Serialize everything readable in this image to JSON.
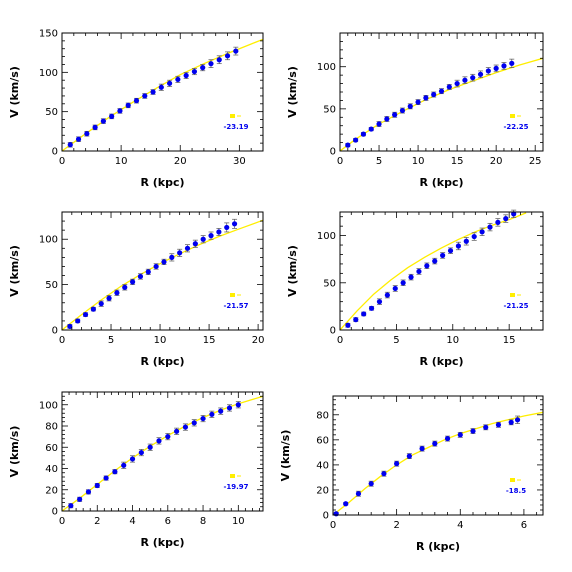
{
  "chart_data": [
    {
      "type": "scatter",
      "xlabel": "R (kpc)",
      "ylabel": "V (km/s)",
      "xlim": [
        0,
        34
      ],
      "ylim": [
        0,
        150
      ],
      "xticks": [
        0,
        10,
        20,
        30
      ],
      "yticks": [
        0,
        50,
        100,
        150
      ],
      "legend_value": "-23.19",
      "legend_position": "lower-right",
      "series": [
        {
          "kind": "points",
          "x": [
            1.4,
            2.8,
            4.2,
            5.6,
            7.0,
            8.4,
            9.8,
            11.2,
            12.6,
            14.0,
            15.4,
            16.8,
            18.2,
            19.6,
            21.0,
            22.4,
            23.8,
            25.2,
            26.6,
            28.0,
            29.4
          ],
          "y": [
            8,
            15,
            22,
            30,
            38,
            44,
            51,
            58,
            64,
            70,
            75,
            81,
            86,
            91,
            96,
            101,
            106,
            111,
            116,
            121,
            127
          ],
          "err": [
            3,
            3,
            3,
            3,
            3,
            3,
            3,
            3,
            3,
            3,
            3,
            4,
            4,
            4,
            4,
            4,
            4,
            5,
            5,
            5,
            5
          ]
        },
        {
          "kind": "fit",
          "x": [
            0,
            4,
            8,
            12,
            16,
            20,
            24,
            28,
            32,
            34
          ],
          "y": [
            0,
            22,
            43,
            62,
            80,
            97,
            111,
            124,
            136,
            142
          ]
        }
      ]
    },
    {
      "type": "scatter",
      "xlabel": "R (kpc)",
      "ylabel": "V (km/s)",
      "xlim": [
        0,
        26
      ],
      "ylim": [
        0,
        140
      ],
      "xticks": [
        0,
        5,
        10,
        15,
        20,
        25
      ],
      "yticks": [
        0,
        50,
        100
      ],
      "legend_value": "-22.25",
      "legend_position": "lower-right",
      "series": [
        {
          "kind": "points",
          "x": [
            1.0,
            2.0,
            3.0,
            4.0,
            5.0,
            6.0,
            7.0,
            8.0,
            9.0,
            10.0,
            11.0,
            12.0,
            13.0,
            14.0,
            15.0,
            16.0,
            17.0,
            18.0,
            19.0,
            20.0,
            21.0,
            22.0
          ],
          "y": [
            7,
            13,
            20,
            26,
            32,
            38,
            43,
            48,
            53,
            58,
            63,
            67,
            71,
            76,
            80,
            84,
            87,
            91,
            95,
            98,
            101,
            104
          ],
          "err": [
            2,
            2,
            2,
            2,
            3,
            3,
            3,
            3,
            3,
            3,
            3,
            3,
            3,
            3,
            4,
            4,
            4,
            4,
            4,
            4,
            4,
            5
          ]
        },
        {
          "kind": "fit",
          "x": [
            0,
            2,
            5,
            8,
            11,
            14,
            17,
            20,
            23,
            26
          ],
          "y": [
            0,
            14,
            32,
            47,
            61,
            73,
            83,
            93,
            102,
            110
          ]
        }
      ]
    },
    {
      "type": "scatter",
      "xlabel": "R (kpc)",
      "ylabel": "V (km/s)",
      "xlim": [
        0,
        20.5
      ],
      "ylim": [
        0,
        130
      ],
      "xticks": [
        0,
        5,
        10,
        15,
        20
      ],
      "yticks": [
        0,
        50,
        100
      ],
      "legend_value": "-21.57",
      "legend_position": "lower-right",
      "series": [
        {
          "kind": "points",
          "x": [
            0.8,
            1.6,
            2.4,
            3.2,
            4.0,
            4.8,
            5.6,
            6.4,
            7.2,
            8.0,
            8.8,
            9.6,
            10.4,
            11.2,
            12.0,
            12.8,
            13.6,
            14.4,
            15.2,
            16.0,
            16.8,
            17.6
          ],
          "y": [
            4,
            10,
            17,
            23,
            29,
            35,
            41,
            47,
            53,
            59,
            64,
            70,
            75,
            80,
            85,
            90,
            95,
            100,
            104,
            108,
            113,
            117
          ],
          "err": [
            2,
            2,
            2,
            2,
            3,
            3,
            3,
            3,
            3,
            3,
            3,
            3,
            3,
            4,
            4,
            4,
            4,
            4,
            4,
            4,
            5,
            5
          ]
        },
        {
          "kind": "fit",
          "x": [
            0,
            2,
            4,
            6,
            8,
            10,
            12,
            14,
            16,
            18,
            20.5
          ],
          "y": [
            0,
            17,
            33,
            48,
            61,
            73,
            84,
            94,
            103,
            111,
            121
          ]
        }
      ]
    },
    {
      "type": "scatter",
      "xlabel": "R (kpc)",
      "ylabel": "V (km/s)",
      "xlim": [
        0,
        18
      ],
      "ylim": [
        0,
        125
      ],
      "xticks": [
        0,
        5,
        10,
        15
      ],
      "yticks": [
        0,
        50,
        100
      ],
      "legend_value": "-21.25",
      "legend_position": "lower-right",
      "series": [
        {
          "kind": "points",
          "x": [
            0.7,
            1.4,
            2.1,
            2.8,
            3.5,
            4.2,
            4.9,
            5.6,
            6.3,
            7.0,
            7.7,
            8.4,
            9.1,
            9.8,
            10.5,
            11.2,
            11.9,
            12.6,
            13.3,
            14.0,
            14.7,
            15.4
          ],
          "y": [
            5,
            11,
            17,
            23,
            30,
            37,
            44,
            50,
            56,
            62,
            68,
            73,
            79,
            84,
            89,
            94,
            99,
            104,
            109,
            114,
            118,
            123
          ],
          "err": [
            2,
            2,
            2,
            2,
            3,
            3,
            3,
            3,
            3,
            3,
            3,
            3,
            3,
            3,
            4,
            4,
            4,
            4,
            4,
            4,
            4,
            4
          ]
        },
        {
          "kind": "fit",
          "x": [
            0,
            1.5,
            3,
            4.5,
            6,
            7.5,
            9,
            10.5,
            12,
            13.5,
            15,
            16.5
          ],
          "y": [
            0,
            20,
            38,
            53,
            66,
            77,
            87,
            96,
            104,
            111,
            117,
            124
          ]
        }
      ]
    },
    {
      "type": "scatter",
      "xlabel": "R (kpc)",
      "ylabel": "V (km/s)",
      "xlim": [
        0,
        11.4
      ],
      "ylim": [
        0,
        112
      ],
      "xticks": [
        0,
        2,
        4,
        6,
        8,
        10
      ],
      "yticks": [
        0,
        20,
        40,
        60,
        80,
        100
      ],
      "legend_value": "-19.97",
      "legend_position": "lower-right",
      "series": [
        {
          "kind": "points",
          "x": [
            0.5,
            1.0,
            1.5,
            2.0,
            2.5,
            3.0,
            3.5,
            4.0,
            4.5,
            5.0,
            5.5,
            6.0,
            6.5,
            7.0,
            7.5,
            8.0,
            8.5,
            9.0,
            9.5,
            10.0
          ],
          "y": [
            5,
            11,
            18,
            24,
            31,
            37,
            43,
            49,
            55,
            60,
            66,
            70,
            75,
            79,
            83,
            87,
            91,
            94,
            97,
            100
          ],
          "err": [
            2,
            2,
            2,
            2,
            2,
            2,
            3,
            3,
            3,
            3,
            3,
            3,
            3,
            3,
            3,
            3,
            3,
            3,
            3,
            3
          ]
        },
        {
          "kind": "fit",
          "x": [
            0,
            1,
            2,
            3,
            4,
            5,
            6,
            7,
            8,
            9,
            10,
            11.4
          ],
          "y": [
            0,
            12,
            25,
            38,
            50,
            61,
            71,
            80,
            88,
            95,
            101,
            108
          ]
        }
      ]
    },
    {
      "type": "scatter",
      "xlabel": "R (kpc)",
      "ylabel": "V (km/s)",
      "xlim": [
        0,
        6.6
      ],
      "ylim": [
        0,
        95
      ],
      "xticks": [
        0,
        2,
        4,
        6
      ],
      "yticks": [
        0,
        20,
        40,
        60,
        80
      ],
      "legend_value": "-18.5",
      "legend_position": "lower-right",
      "series": [
        {
          "kind": "points",
          "x": [
            0.1,
            0.4,
            0.8,
            1.2,
            1.6,
            2.0,
            2.4,
            2.8,
            3.2,
            3.6,
            4.0,
            4.4,
            4.8,
            5.2,
            5.6,
            5.8
          ],
          "y": [
            1,
            9,
            17,
            25,
            33,
            41,
            47,
            53,
            57,
            61,
            64,
            67,
            70,
            72,
            74,
            76
          ],
          "err": [
            1,
            1,
            2,
            2,
            2,
            2,
            2,
            2,
            2,
            2,
            2,
            2,
            2,
            2,
            2,
            3
          ]
        },
        {
          "kind": "fit",
          "x": [
            0,
            0.5,
            1,
            1.5,
            2,
            2.5,
            3,
            3.5,
            4,
            4.5,
            5,
            5.5,
            6,
            6.6
          ],
          "y": [
            0,
            10,
            21,
            31,
            40,
            48,
            54,
            60,
            65,
            69,
            73,
            76,
            79,
            82
          ]
        }
      ]
    }
  ],
  "colors": {
    "points": "#0000ee",
    "fit": "#ffee00",
    "axes": "#000000"
  }
}
